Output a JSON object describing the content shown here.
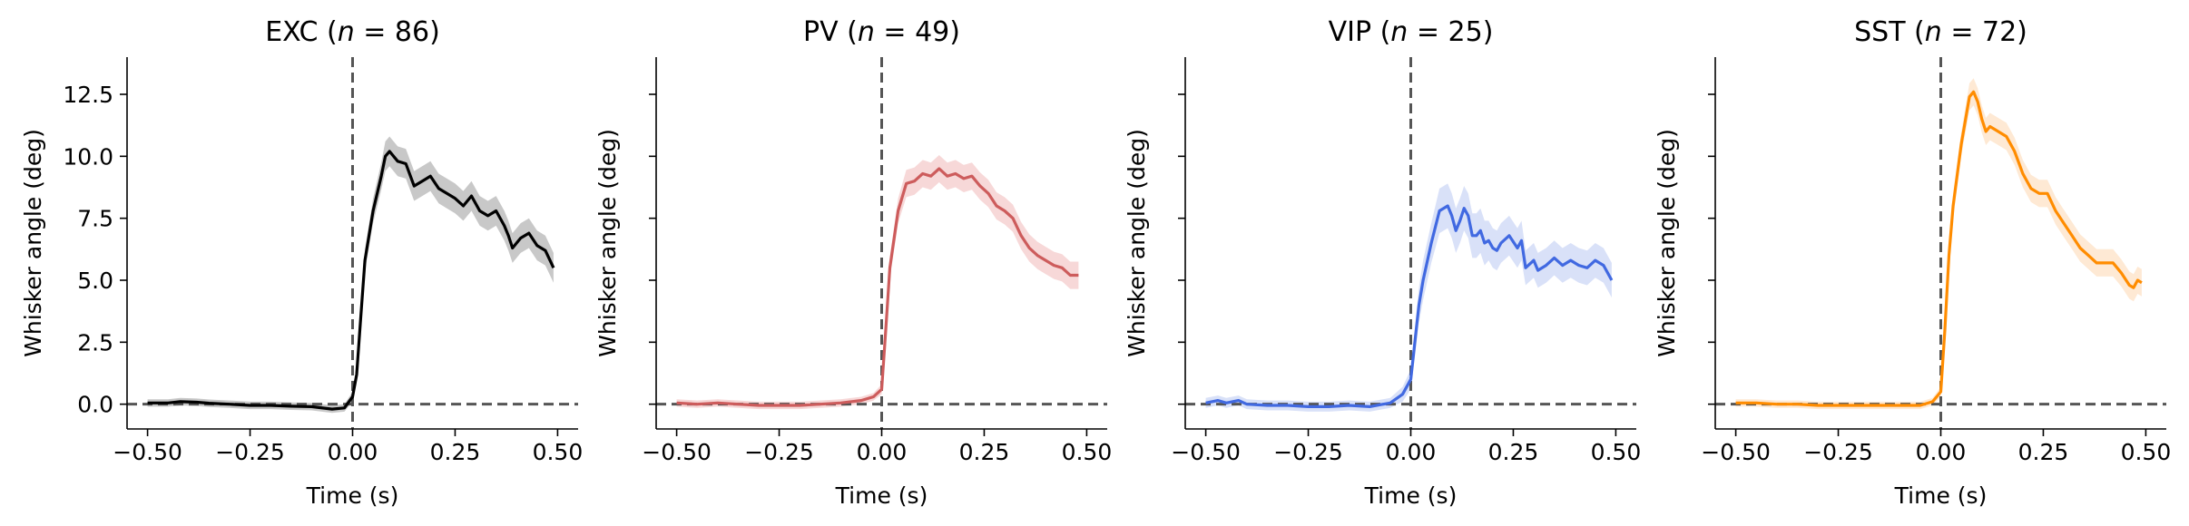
{
  "chart_data": [
    {
      "type": "line",
      "title_prefix": "EXC (",
      "title_n": "n",
      "title_suffix": " = 86)",
      "xlabel": "Time (s)",
      "ylabel": "Whisker angle (deg)",
      "xlim": [
        -0.55,
        0.55
      ],
      "ylim": [
        -1.0,
        14.0
      ],
      "xticks": [
        -0.5,
        -0.25,
        0.0,
        0.25,
        0.5
      ],
      "xtick_labels": [
        "−0.50",
        "−0.25",
        "0.00",
        "0.25",
        "0.50"
      ],
      "yticks": [
        0.0,
        2.5,
        5.0,
        7.5,
        10.0,
        12.5
      ],
      "ytick_labels": [
        "0.0",
        "2.5",
        "5.0",
        "7.5",
        "10.0",
        "12.5"
      ],
      "show_yticklabels": true,
      "color": "#000000",
      "band_color": "#b0b0b0",
      "series": [
        {
          "x": [
            -0.5,
            -0.45,
            -0.42,
            -0.38,
            -0.35,
            -0.3,
            -0.25,
            -0.2,
            -0.15,
            -0.1,
            -0.05,
            -0.02,
            0.0,
            0.01,
            0.02,
            0.03,
            0.05,
            0.07,
            0.08,
            0.09,
            0.11,
            0.13,
            0.15,
            0.17,
            0.19,
            0.21,
            0.23,
            0.25,
            0.27,
            0.29,
            0.31,
            0.33,
            0.35,
            0.37,
            0.38,
            0.39,
            0.41,
            0.43,
            0.45,
            0.47,
            0.49
          ],
          "y": [
            0.05,
            0.05,
            0.1,
            0.08,
            0.04,
            0.0,
            -0.05,
            -0.05,
            -0.08,
            -0.1,
            -0.2,
            -0.15,
            0.3,
            1.2,
            3.5,
            5.8,
            7.8,
            9.2,
            10.0,
            10.2,
            9.8,
            9.7,
            8.8,
            9.0,
            9.2,
            8.7,
            8.5,
            8.3,
            8.0,
            8.4,
            7.8,
            7.6,
            7.8,
            7.2,
            6.8,
            6.3,
            6.7,
            6.9,
            6.4,
            6.2,
            5.5
          ],
          "err": [
            0.15,
            0.15,
            0.15,
            0.15,
            0.15,
            0.15,
            0.15,
            0.15,
            0.15,
            0.15,
            0.15,
            0.15,
            0.2,
            0.3,
            0.4,
            0.45,
            0.5,
            0.55,
            0.6,
            0.6,
            0.6,
            0.6,
            0.6,
            0.6,
            0.6,
            0.6,
            0.6,
            0.6,
            0.6,
            0.6,
            0.6,
            0.6,
            0.6,
            0.6,
            0.6,
            0.6,
            0.6,
            0.6,
            0.6,
            0.6,
            0.6
          ]
        }
      ]
    },
    {
      "type": "line",
      "title_prefix": "PV (",
      "title_n": "n",
      "title_suffix": " = 49)",
      "xlabel": "Time (s)",
      "ylabel": "Whisker angle (deg)",
      "xlim": [
        -0.55,
        0.55
      ],
      "ylim": [
        -1.0,
        14.0
      ],
      "xticks": [
        -0.5,
        -0.25,
        0.0,
        0.25,
        0.5
      ],
      "xtick_labels": [
        "−0.50",
        "−0.25",
        "0.00",
        "0.25",
        "0.50"
      ],
      "yticks": [
        0.0,
        2.5,
        5.0,
        7.5,
        10.0,
        12.5
      ],
      "ytick_labels": [
        "0.0",
        "2.5",
        "5.0",
        "7.5",
        "10.0",
        "12.5"
      ],
      "show_yticklabels": false,
      "color": "#cd5c5c",
      "band_color": "#f3c7c7",
      "series": [
        {
          "x": [
            -0.5,
            -0.45,
            -0.4,
            -0.35,
            -0.3,
            -0.25,
            -0.2,
            -0.15,
            -0.1,
            -0.05,
            -0.02,
            0.0,
            0.01,
            0.02,
            0.04,
            0.06,
            0.08,
            0.1,
            0.12,
            0.14,
            0.16,
            0.18,
            0.2,
            0.22,
            0.24,
            0.26,
            0.28,
            0.3,
            0.32,
            0.34,
            0.36,
            0.38,
            0.4,
            0.42,
            0.44,
            0.46,
            0.48
          ],
          "y": [
            0.05,
            0.0,
            0.05,
            0.0,
            -0.05,
            -0.05,
            -0.05,
            0.0,
            0.05,
            0.15,
            0.3,
            0.6,
            3.0,
            5.5,
            7.8,
            8.9,
            9.0,
            9.3,
            9.2,
            9.5,
            9.2,
            9.3,
            9.1,
            9.2,
            8.8,
            8.5,
            8.0,
            7.8,
            7.5,
            6.8,
            6.3,
            6.0,
            5.8,
            5.6,
            5.5,
            5.2,
            5.2
          ],
          "err": [
            0.15,
            0.15,
            0.15,
            0.15,
            0.15,
            0.15,
            0.15,
            0.15,
            0.15,
            0.15,
            0.15,
            0.2,
            0.35,
            0.45,
            0.5,
            0.55,
            0.55,
            0.55,
            0.55,
            0.55,
            0.55,
            0.55,
            0.55,
            0.55,
            0.55,
            0.55,
            0.55,
            0.55,
            0.55,
            0.55,
            0.55,
            0.55,
            0.55,
            0.55,
            0.55,
            0.55,
            0.55
          ]
        }
      ]
    },
    {
      "type": "line",
      "title_prefix": "VIP (",
      "title_n": "n",
      "title_suffix": " = 25)",
      "xlabel": "Time (s)",
      "ylabel": "Whisker angle (deg)",
      "xlim": [
        -0.55,
        0.55
      ],
      "ylim": [
        -1.0,
        14.0
      ],
      "xticks": [
        -0.5,
        -0.25,
        0.0,
        0.25,
        0.5
      ],
      "xtick_labels": [
        "−0.50",
        "−0.25",
        "0.00",
        "0.25",
        "0.50"
      ],
      "yticks": [
        0.0,
        2.5,
        5.0,
        7.5,
        10.0,
        12.5
      ],
      "ytick_labels": [
        "0.0",
        "2.5",
        "5.0",
        "7.5",
        "10.0",
        "12.5"
      ],
      "show_yticklabels": false,
      "color": "#4169e1",
      "band_color": "#c9d4f5",
      "series": [
        {
          "x": [
            -0.5,
            -0.47,
            -0.45,
            -0.42,
            -0.4,
            -0.35,
            -0.3,
            -0.25,
            -0.2,
            -0.15,
            -0.1,
            -0.05,
            -0.02,
            0.0,
            0.01,
            0.02,
            0.03,
            0.05,
            0.07,
            0.09,
            0.1,
            0.11,
            0.12,
            0.13,
            0.14,
            0.15,
            0.16,
            0.17,
            0.18,
            0.19,
            0.2,
            0.21,
            0.22,
            0.24,
            0.26,
            0.27,
            0.28,
            0.3,
            0.31,
            0.33,
            0.35,
            0.37,
            0.39,
            0.41,
            0.43,
            0.45,
            0.47,
            0.49
          ],
          "y": [
            0.05,
            0.15,
            0.05,
            0.15,
            0.0,
            -0.05,
            -0.05,
            -0.1,
            -0.1,
            -0.05,
            -0.1,
            0.05,
            0.4,
            1.0,
            2.5,
            4.0,
            5.0,
            6.5,
            7.8,
            8.0,
            7.6,
            7.0,
            7.4,
            7.9,
            7.6,
            6.8,
            6.8,
            7.0,
            6.5,
            6.6,
            6.3,
            6.2,
            6.5,
            6.8,
            6.3,
            6.6,
            5.5,
            5.8,
            5.4,
            5.6,
            5.9,
            5.6,
            5.8,
            5.6,
            5.5,
            5.8,
            5.6,
            5.0
          ],
          "err": [
            0.2,
            0.2,
            0.2,
            0.2,
            0.2,
            0.2,
            0.2,
            0.2,
            0.2,
            0.2,
            0.2,
            0.2,
            0.3,
            0.4,
            0.6,
            0.7,
            0.8,
            0.8,
            0.9,
            0.9,
            0.9,
            0.9,
            0.9,
            0.9,
            0.9,
            0.9,
            0.9,
            0.9,
            0.9,
            0.8,
            0.8,
            0.8,
            0.8,
            0.8,
            0.8,
            0.8,
            0.7,
            0.7,
            0.7,
            0.7,
            0.7,
            0.7,
            0.7,
            0.7,
            0.7,
            0.7,
            0.7,
            0.7
          ]
        }
      ]
    },
    {
      "type": "line",
      "title_prefix": "SST (",
      "title_n": "n",
      "title_suffix": " = 72)",
      "xlabel": "Time (s)",
      "ylabel": "Whisker angle (deg)",
      "xlim": [
        -0.55,
        0.55
      ],
      "ylim": [
        -1.0,
        14.0
      ],
      "xticks": [
        -0.5,
        -0.25,
        0.0,
        0.25,
        0.5
      ],
      "xtick_labels": [
        "−0.50",
        "−0.25",
        "0.00",
        "0.25",
        "0.50"
      ],
      "yticks": [
        0.0,
        2.5,
        5.0,
        7.5,
        10.0,
        12.5
      ],
      "ytick_labels": [
        "0.0",
        "2.5",
        "5.0",
        "7.5",
        "10.0",
        "12.5"
      ],
      "show_yticklabels": false,
      "color": "#ff8c00",
      "band_color": "#fde0c2",
      "series": [
        {
          "x": [
            -0.5,
            -0.45,
            -0.4,
            -0.35,
            -0.3,
            -0.25,
            -0.2,
            -0.15,
            -0.1,
            -0.05,
            -0.02,
            0.0,
            0.01,
            0.02,
            0.03,
            0.05,
            0.07,
            0.08,
            0.09,
            0.1,
            0.11,
            0.12,
            0.14,
            0.16,
            0.18,
            0.2,
            0.22,
            0.24,
            0.26,
            0.28,
            0.3,
            0.32,
            0.34,
            0.36,
            0.38,
            0.4,
            0.42,
            0.44,
            0.46,
            0.47,
            0.48,
            0.49
          ],
          "y": [
            0.05,
            0.05,
            0.0,
            0.0,
            -0.05,
            -0.05,
            -0.05,
            -0.05,
            -0.05,
            -0.05,
            0.1,
            0.5,
            3.0,
            6.0,
            8.0,
            10.5,
            12.4,
            12.6,
            12.2,
            11.5,
            11.0,
            11.2,
            11.0,
            10.8,
            10.2,
            9.3,
            8.7,
            8.5,
            8.5,
            7.8,
            7.3,
            6.8,
            6.3,
            6.0,
            5.7,
            5.7,
            5.7,
            5.3,
            4.8,
            4.7,
            5.0,
            4.9
          ],
          "err": [
            0.15,
            0.15,
            0.15,
            0.15,
            0.15,
            0.15,
            0.15,
            0.15,
            0.15,
            0.15,
            0.15,
            0.2,
            0.35,
            0.45,
            0.5,
            0.5,
            0.55,
            0.55,
            0.55,
            0.55,
            0.55,
            0.55,
            0.55,
            0.55,
            0.55,
            0.55,
            0.55,
            0.55,
            0.55,
            0.55,
            0.55,
            0.55,
            0.55,
            0.55,
            0.55,
            0.55,
            0.55,
            0.55,
            0.55,
            0.55,
            0.55,
            0.55
          ]
        }
      ]
    }
  ]
}
